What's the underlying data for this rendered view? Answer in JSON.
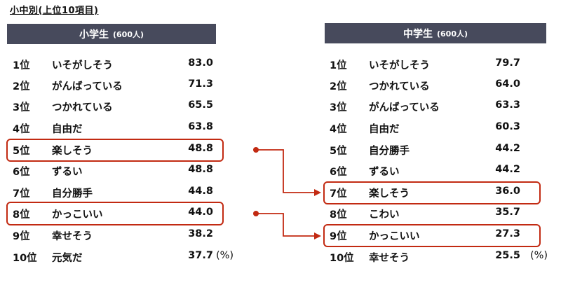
{
  "title": "小中別(上位10項目)",
  "elementary": {
    "header": "小学生",
    "count": "(600人)",
    "unit": "(%)",
    "rows": [
      {
        "rank": "1位",
        "item": "いそがしそう",
        "value": "83.0"
      },
      {
        "rank": "2位",
        "item": "がんばっている",
        "value": "71.3"
      },
      {
        "rank": "3位",
        "item": "つかれている",
        "value": "65.5"
      },
      {
        "rank": "4位",
        "item": "自由だ",
        "value": "63.8"
      },
      {
        "rank": "5位",
        "item": "楽しそう",
        "value": "48.8"
      },
      {
        "rank": "6位",
        "item": "ずるい",
        "value": "48.8"
      },
      {
        "rank": "7位",
        "item": "自分勝手",
        "value": "44.8"
      },
      {
        "rank": "8位",
        "item": "かっこいい",
        "value": "44.0"
      },
      {
        "rank": "9位",
        "item": "幸せそう",
        "value": "38.2"
      },
      {
        "rank": "10位",
        "item": "元気だ",
        "value": "37.7"
      }
    ]
  },
  "junior_high": {
    "header": "中学生",
    "count": "(600人)",
    "unit": "(%)",
    "rows": [
      {
        "rank": "1位",
        "item": "いそがしそう",
        "value": "79.7"
      },
      {
        "rank": "2位",
        "item": "つかれている",
        "value": "64.0"
      },
      {
        "rank": "3位",
        "item": "がんばっている",
        "value": "63.3"
      },
      {
        "rank": "4位",
        "item": "自由だ",
        "value": "60.3"
      },
      {
        "rank": "5位",
        "item": "自分勝手",
        "value": "44.2"
      },
      {
        "rank": "6位",
        "item": "ずるい",
        "value": "44.2"
      },
      {
        "rank": "7位",
        "item": "楽しそう",
        "value": "36.0"
      },
      {
        "rank": "8位",
        "item": "こわい",
        "value": "35.7"
      },
      {
        "rank": "9位",
        "item": "かっこいい",
        "value": "27.3"
      },
      {
        "rank": "10位",
        "item": "幸せそう",
        "value": "25.5"
      }
    ]
  },
  "highlight_color": "#c22a12",
  "header_color": "#474a5c"
}
